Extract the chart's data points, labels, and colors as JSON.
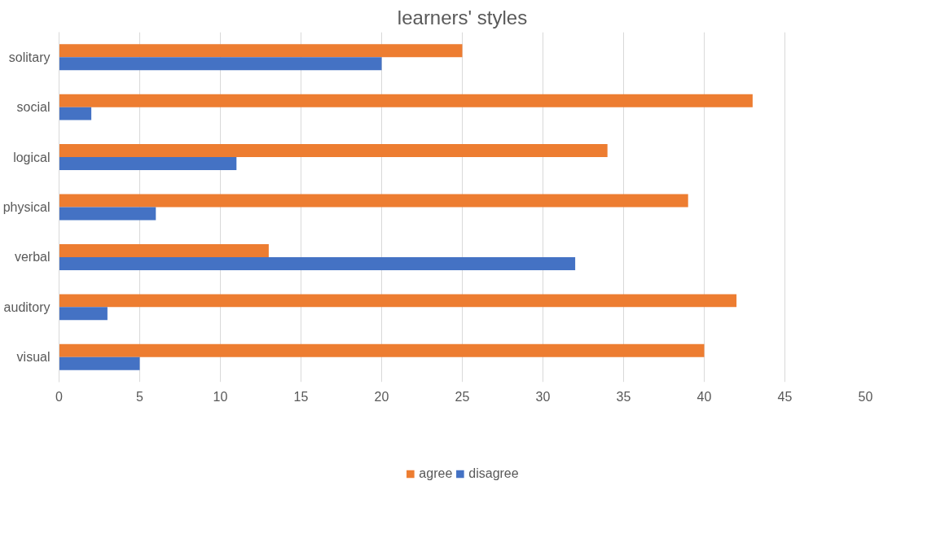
{
  "chart_data": {
    "type": "bar",
    "orientation": "horizontal",
    "title": "learners' styles",
    "categories": [
      "solitary",
      "social",
      "logical",
      "physical",
      "verbal",
      "auditory",
      "visual"
    ],
    "series": [
      {
        "name": "agree",
        "color": "#ed7d31",
        "values": [
          25,
          43,
          34,
          39,
          13,
          42,
          40
        ]
      },
      {
        "name": "disagree",
        "color": "#4472c4",
        "values": [
          20,
          2,
          11,
          6,
          32,
          3,
          5
        ]
      }
    ],
    "xlim": [
      0,
      50
    ],
    "xticks": [
      0,
      5,
      10,
      15,
      20,
      25,
      30,
      35,
      40,
      45,
      50
    ],
    "grid": "x",
    "legend": "bottom"
  }
}
